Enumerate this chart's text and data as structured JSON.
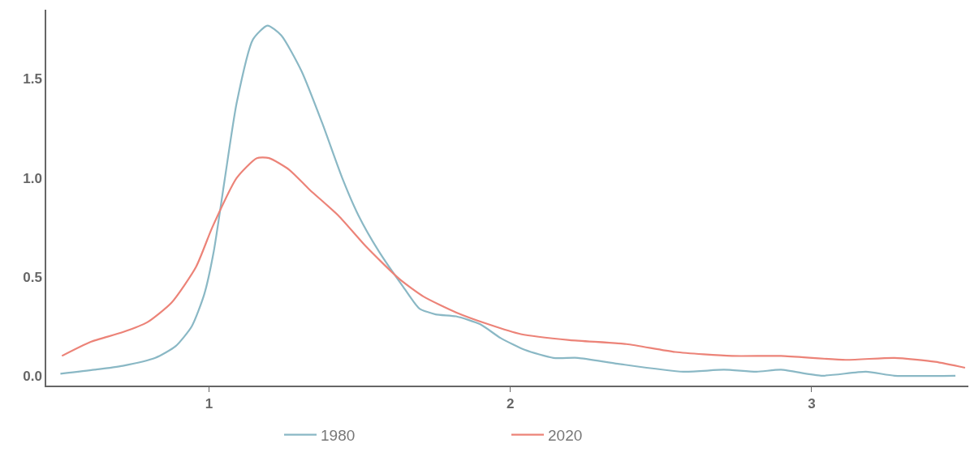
{
  "chart_data": {
    "type": "line",
    "xlim": [
      0.46,
      3.52
    ],
    "ylim": [
      -0.05,
      1.85
    ],
    "xticks": [
      1,
      2,
      3
    ],
    "yticks": [
      {
        "value": 0,
        "label": "0.0"
      },
      0.5,
      {
        "value": 1,
        "label": "1.0"
      },
      1.5
    ],
    "grid": false,
    "legend": "bottom",
    "marker": "none",
    "line_style": "solid",
    "series": [
      {
        "name": "1980",
        "color": "#8ab8c5",
        "x": [
          0.507,
          0.62,
          0.714,
          0.822,
          0.89,
          0.943,
          0.984,
          1.016,
          1.051,
          1.092,
          1.146,
          1.194,
          1.24,
          1.307,
          1.375,
          1.442,
          1.496,
          1.563,
          1.644,
          1.698,
          1.752,
          1.82,
          1.9,
          1.968,
          2.049,
          2.143,
          2.224,
          2.358,
          2.574,
          2.709,
          2.817,
          2.898,
          3.032,
          3.18,
          3.275,
          3.477
        ],
        "values": [
          0.01,
          0.03,
          0.05,
          0.09,
          0.15,
          0.25,
          0.41,
          0.63,
          0.98,
          1.38,
          1.7,
          1.77,
          1.72,
          1.54,
          1.28,
          1.0,
          0.81,
          0.63,
          0.45,
          0.34,
          0.31,
          0.3,
          0.26,
          0.19,
          0.13,
          0.09,
          0.09,
          0.06,
          0.02,
          0.03,
          0.02,
          0.03,
          0.0,
          0.02,
          0.0,
          0.0
        ]
      },
      {
        "name": "2020",
        "color": "#ec8378",
        "x": [
          0.512,
          0.606,
          0.714,
          0.795,
          0.876,
          0.957,
          1.011,
          1.092,
          1.159,
          1.199,
          1.267,
          1.334,
          1.429,
          1.523,
          1.631,
          1.712,
          1.82,
          1.927,
          2.035,
          2.197,
          2.385,
          2.547,
          2.736,
          2.898,
          3.113,
          3.275,
          3.41,
          3.509
        ],
        "values": [
          0.1,
          0.17,
          0.22,
          0.27,
          0.37,
          0.55,
          0.75,
          1.0,
          1.1,
          1.1,
          1.04,
          0.94,
          0.81,
          0.65,
          0.49,
          0.4,
          0.32,
          0.26,
          0.21,
          0.18,
          0.16,
          0.12,
          0.1,
          0.1,
          0.08,
          0.09,
          0.07,
          0.04
        ]
      }
    ]
  }
}
